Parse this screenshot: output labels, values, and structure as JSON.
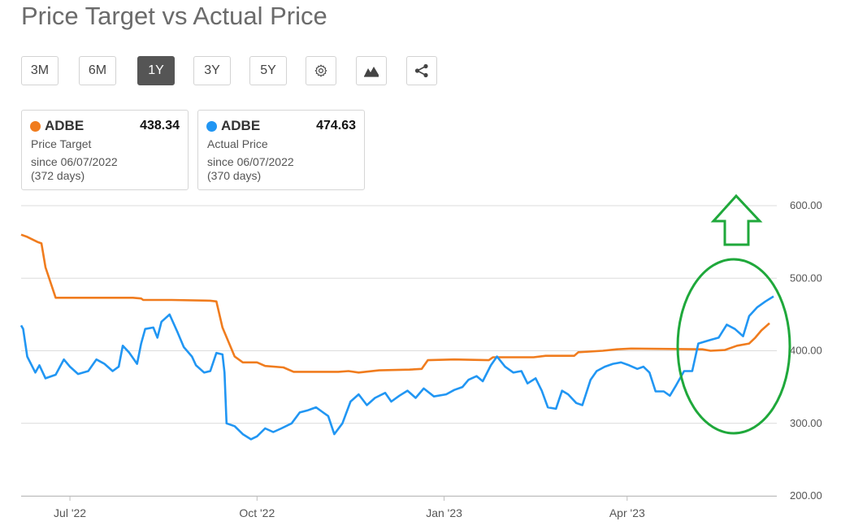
{
  "title": "Price Target vs Actual Price",
  "toolbar": {
    "ranges": [
      "3M",
      "6M",
      "1Y",
      "3Y",
      "5Y"
    ],
    "active_range": "1Y",
    "icons": [
      "gear-icon",
      "mountain-chart-icon",
      "share-icon"
    ]
  },
  "cards": [
    {
      "symbol": "ADBE",
      "value": "438.34",
      "label": "Price Target",
      "since": "since 06/07/2022",
      "days": "(372 days)",
      "color": "#f07c1e"
    },
    {
      "symbol": "ADBE",
      "value": "474.63",
      "label": "Actual Price",
      "since": "since 06/07/2022",
      "days": "(370 days)",
      "color": "#2196f3"
    }
  ],
  "colors": {
    "target": "#f07c1e",
    "actual": "#2196f3",
    "annotation": "#1fa83b",
    "grid": "#dcdcdc"
  },
  "chart_data": {
    "type": "line",
    "x_ticks": [
      "Jul '22",
      "Oct '22",
      "Jan '23",
      "Apr '23"
    ],
    "y_ticks": [
      "600.00",
      "500.00",
      "400.00",
      "300.00",
      "200.00"
    ],
    "ylim": [
      200,
      600
    ],
    "x_range": [
      "2022-06-07",
      "2023-06-12"
    ],
    "grid": true,
    "series": [
      {
        "name": "Price Target",
        "color": "#f07c1e",
        "points": [
          [
            "2022-06-07",
            560
          ],
          [
            "2022-06-10",
            557
          ],
          [
            "2022-06-15",
            550
          ],
          [
            "2022-06-17",
            548
          ],
          [
            "2022-06-19",
            515
          ],
          [
            "2022-06-24",
            473
          ],
          [
            "2022-07-15",
            473
          ],
          [
            "2022-08-01",
            473
          ],
          [
            "2022-08-05",
            472
          ],
          [
            "2022-08-06",
            470
          ],
          [
            "2022-08-20",
            470
          ],
          [
            "2022-09-08",
            469
          ],
          [
            "2022-09-11",
            468
          ],
          [
            "2022-09-14",
            432
          ],
          [
            "2022-09-20",
            392
          ],
          [
            "2022-09-24",
            384
          ],
          [
            "2022-10-01",
            384
          ],
          [
            "2022-10-05",
            379
          ],
          [
            "2022-10-14",
            377
          ],
          [
            "2022-10-19",
            371
          ],
          [
            "2022-11-01",
            371
          ],
          [
            "2022-11-10",
            371
          ],
          [
            "2022-11-15",
            372
          ],
          [
            "2022-11-20",
            370
          ],
          [
            "2022-11-30",
            373
          ],
          [
            "2022-12-15",
            374
          ],
          [
            "2022-12-21",
            375
          ],
          [
            "2022-12-24",
            387
          ],
          [
            "2023-01-06",
            388
          ],
          [
            "2023-01-23",
            387
          ],
          [
            "2023-01-25",
            391
          ],
          [
            "2023-02-14",
            391
          ],
          [
            "2023-02-20",
            393
          ],
          [
            "2023-02-28",
            393
          ],
          [
            "2023-03-06",
            393
          ],
          [
            "2023-03-08",
            398
          ],
          [
            "2023-03-20",
            400
          ],
          [
            "2023-03-27",
            402
          ],
          [
            "2023-04-03",
            403
          ],
          [
            "2023-05-08",
            402
          ],
          [
            "2023-05-12",
            400
          ],
          [
            "2023-05-19",
            401
          ],
          [
            "2023-05-25",
            407
          ],
          [
            "2023-05-31",
            410
          ],
          [
            "2023-06-03",
            418
          ],
          [
            "2023-06-06",
            428
          ],
          [
            "2023-06-10",
            438
          ]
        ]
      },
      {
        "name": "Actual Price",
        "color": "#2196f3",
        "points": [
          [
            "2022-06-07",
            435
          ],
          [
            "2022-06-08",
            430
          ],
          [
            "2022-06-10",
            392
          ],
          [
            "2022-06-14",
            370
          ],
          [
            "2022-06-16",
            380
          ],
          [
            "2022-06-19",
            362
          ],
          [
            "2022-06-24",
            367
          ],
          [
            "2022-06-28",
            388
          ],
          [
            "2022-07-01",
            378
          ],
          [
            "2022-07-05",
            368
          ],
          [
            "2022-07-10",
            372
          ],
          [
            "2022-07-14",
            388
          ],
          [
            "2022-07-18",
            382
          ],
          [
            "2022-07-22",
            372
          ],
          [
            "2022-07-25",
            378
          ],
          [
            "2022-07-27",
            407
          ],
          [
            "2022-07-30",
            398
          ],
          [
            "2022-08-03",
            382
          ],
          [
            "2022-08-05",
            410
          ],
          [
            "2022-08-07",
            430
          ],
          [
            "2022-08-11",
            432
          ],
          [
            "2022-08-13",
            418
          ],
          [
            "2022-08-15",
            440
          ],
          [
            "2022-08-19",
            450
          ],
          [
            "2022-08-23",
            425
          ],
          [
            "2022-08-26",
            405
          ],
          [
            "2022-08-30",
            392
          ],
          [
            "2022-09-01",
            380
          ],
          [
            "2022-09-05",
            370
          ],
          [
            "2022-09-08",
            372
          ],
          [
            "2022-09-11",
            397
          ],
          [
            "2022-09-14",
            395
          ],
          [
            "2022-09-15",
            370
          ],
          [
            "2022-09-16",
            300
          ],
          [
            "2022-09-20",
            296
          ],
          [
            "2022-09-24",
            285
          ],
          [
            "2022-09-28",
            278
          ],
          [
            "2022-10-01",
            282
          ],
          [
            "2022-10-05",
            293
          ],
          [
            "2022-10-09",
            288
          ],
          [
            "2022-10-13",
            293
          ],
          [
            "2022-10-18",
            300
          ],
          [
            "2022-10-22",
            315
          ],
          [
            "2022-10-26",
            318
          ],
          [
            "2022-10-30",
            322
          ],
          [
            "2022-11-02",
            316
          ],
          [
            "2022-11-05",
            310
          ],
          [
            "2022-11-08",
            285
          ],
          [
            "2022-11-12",
            300
          ],
          [
            "2022-11-16",
            330
          ],
          [
            "2022-11-20",
            340
          ],
          [
            "2022-11-24",
            325
          ],
          [
            "2022-11-28",
            335
          ],
          [
            "2022-12-03",
            342
          ],
          [
            "2022-12-06",
            330
          ],
          [
            "2022-12-10",
            338
          ],
          [
            "2022-12-14",
            345
          ],
          [
            "2022-12-18",
            335
          ],
          [
            "2022-12-22",
            348
          ],
          [
            "2022-12-27",
            337
          ],
          [
            "2023-01-02",
            340
          ],
          [
            "2023-01-06",
            346
          ],
          [
            "2023-01-10",
            350
          ],
          [
            "2023-01-13",
            360
          ],
          [
            "2023-01-17",
            365
          ],
          [
            "2023-01-20",
            358
          ],
          [
            "2023-01-24",
            380
          ],
          [
            "2023-01-27",
            392
          ],
          [
            "2023-01-31",
            378
          ],
          [
            "2023-02-04",
            370
          ],
          [
            "2023-02-08",
            372
          ],
          [
            "2023-02-11",
            355
          ],
          [
            "2023-02-15",
            362
          ],
          [
            "2023-02-18",
            345
          ],
          [
            "2023-02-21",
            322
          ],
          [
            "2023-02-25",
            320
          ],
          [
            "2023-02-28",
            345
          ],
          [
            "2023-03-03",
            340
          ],
          [
            "2023-03-07",
            328
          ],
          [
            "2023-03-10",
            325
          ],
          [
            "2023-03-14",
            360
          ],
          [
            "2023-03-17",
            372
          ],
          [
            "2023-03-21",
            378
          ],
          [
            "2023-03-25",
            382
          ],
          [
            "2023-03-29",
            384
          ],
          [
            "2023-04-02",
            380
          ],
          [
            "2023-04-06",
            375
          ],
          [
            "2023-04-09",
            378
          ],
          [
            "2023-04-12",
            370
          ],
          [
            "2023-04-15",
            344
          ],
          [
            "2023-04-19",
            344
          ],
          [
            "2023-04-22",
            338
          ],
          [
            "2023-04-25",
            352
          ],
          [
            "2023-04-29",
            372
          ],
          [
            "2023-05-03",
            372
          ],
          [
            "2023-05-06",
            410
          ],
          [
            "2023-05-12",
            415
          ],
          [
            "2023-05-16",
            418
          ],
          [
            "2023-05-20",
            436
          ],
          [
            "2023-05-24",
            430
          ],
          [
            "2023-05-28",
            420
          ],
          [
            "2023-05-31",
            448
          ],
          [
            "2023-06-04",
            460
          ],
          [
            "2023-06-08",
            468
          ],
          [
            "2023-06-12",
            475
          ]
        ]
      }
    ],
    "annotations": [
      {
        "type": "arrow-up",
        "color": "#1fa83b"
      },
      {
        "type": "ellipse",
        "color": "#1fa83b"
      }
    ]
  }
}
